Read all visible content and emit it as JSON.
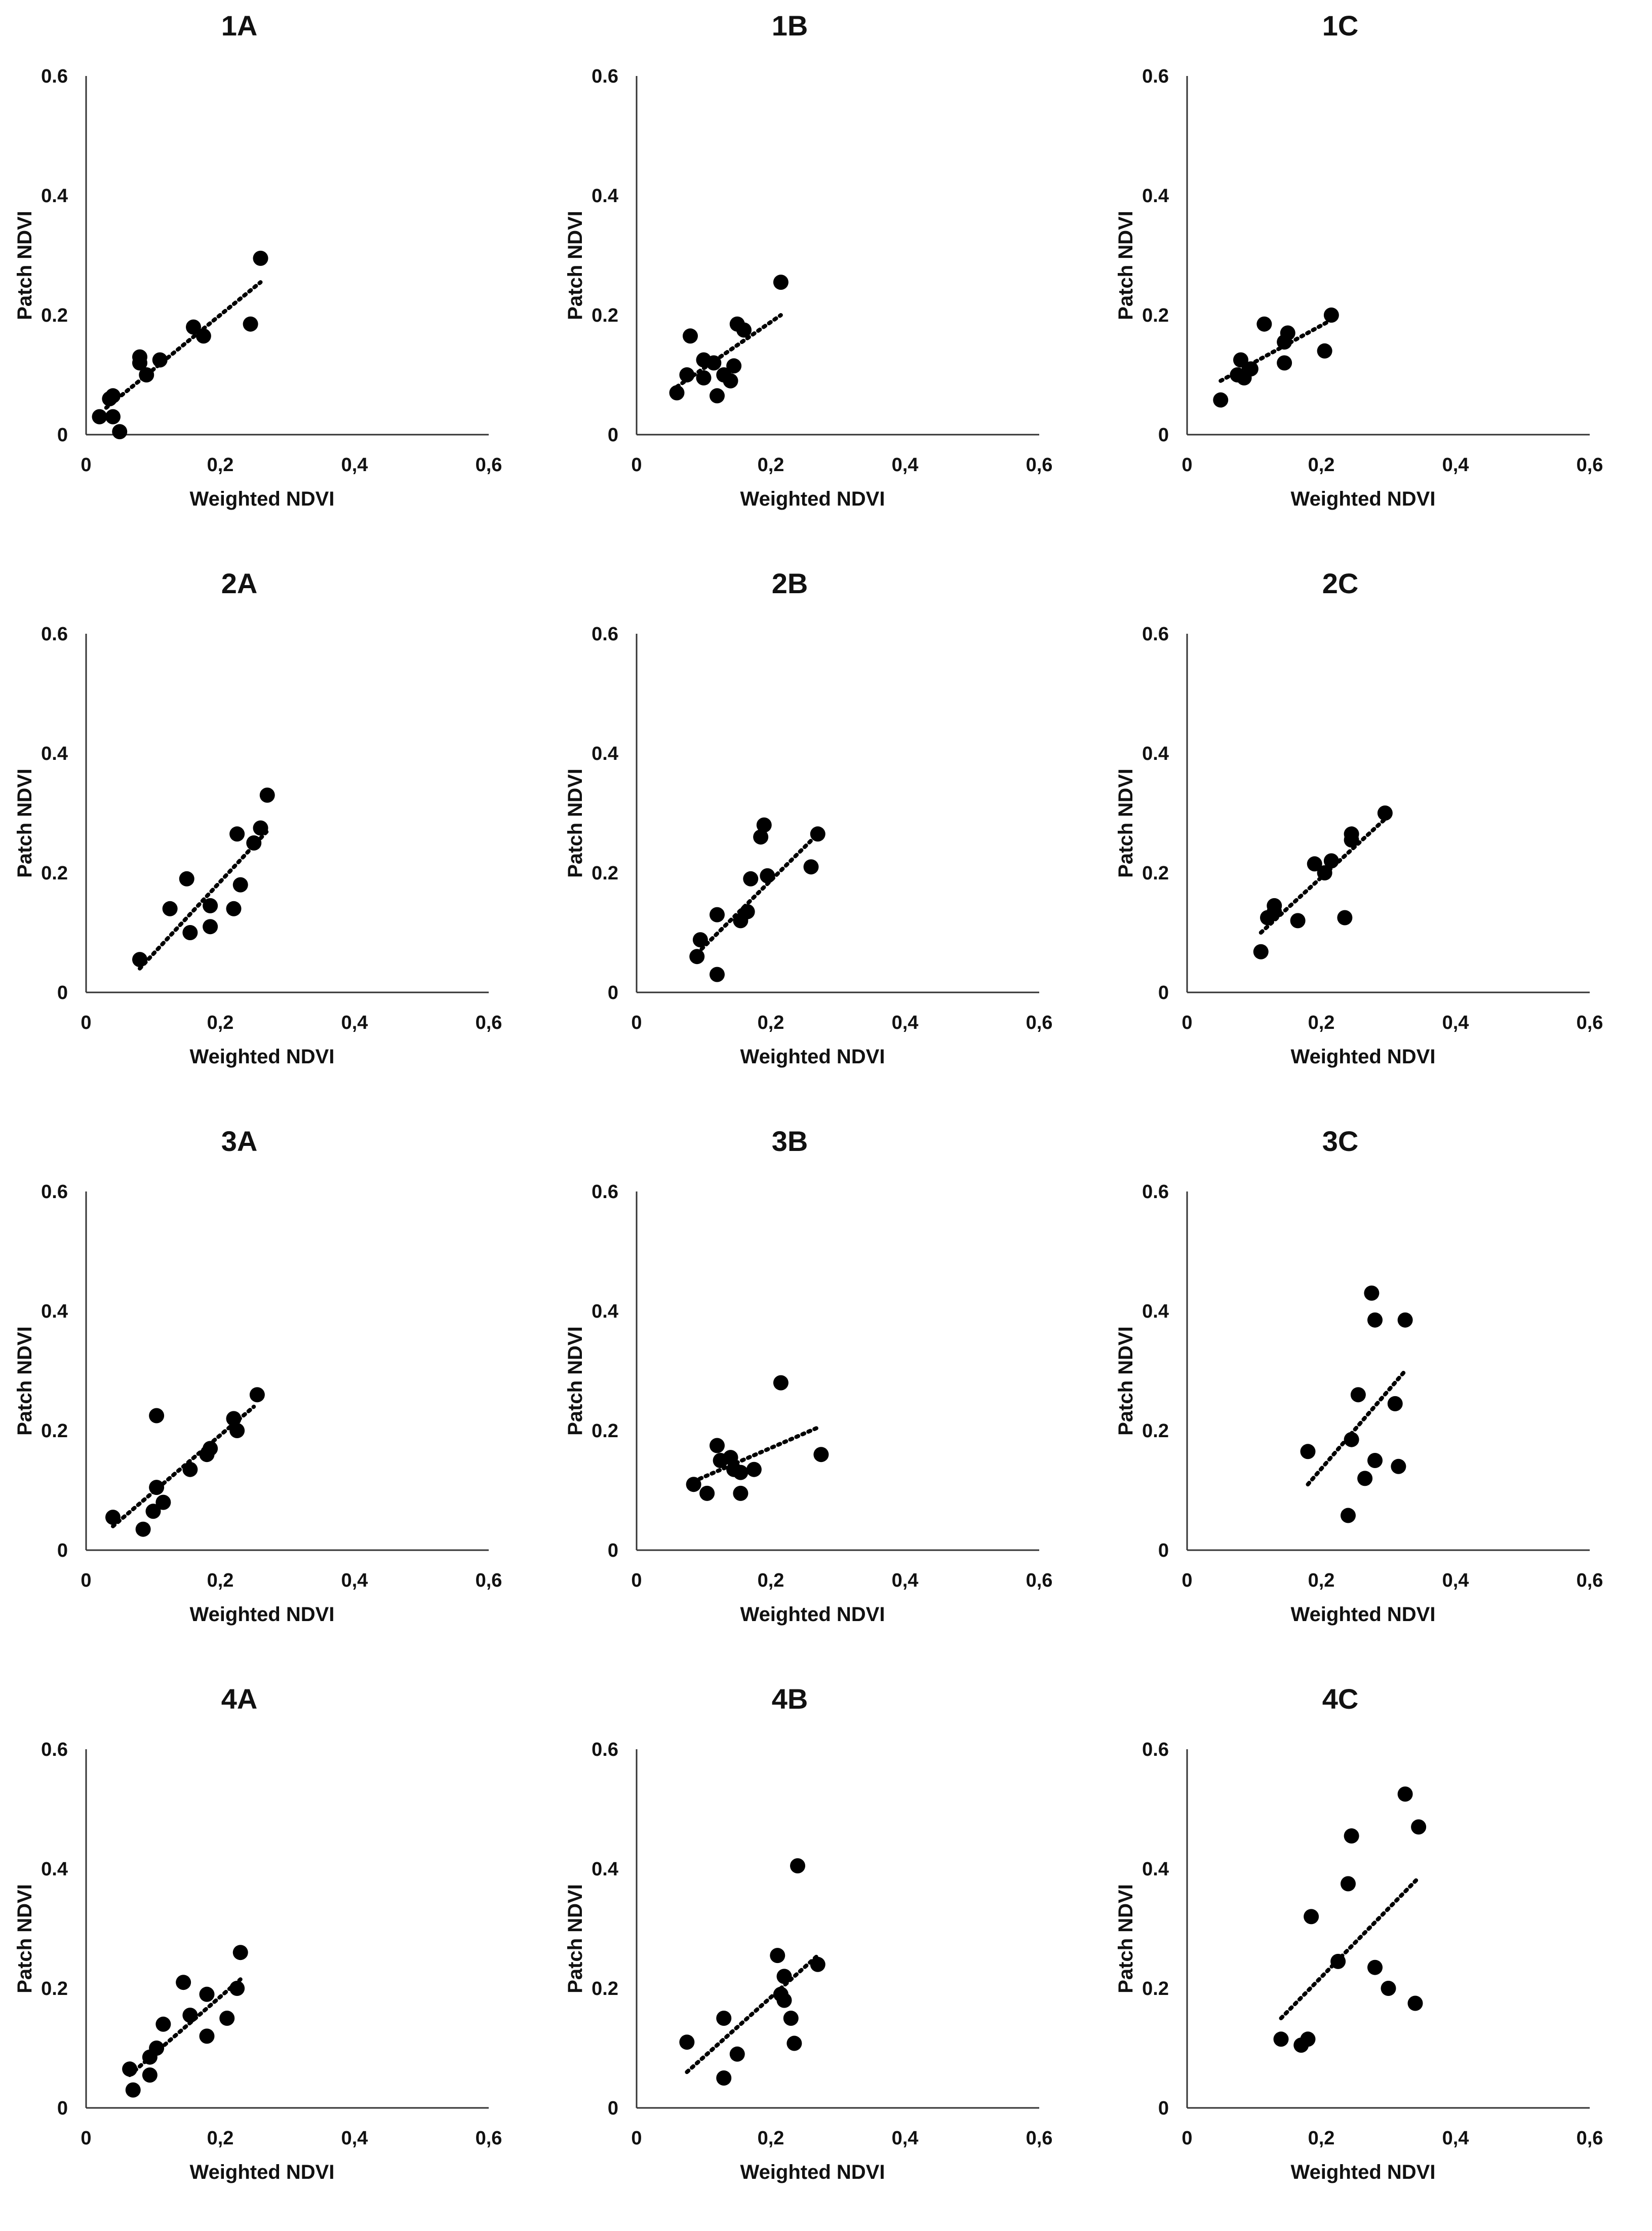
{
  "chart_data": [
    {
      "id": "1A",
      "type": "scatter",
      "title": "1A",
      "xlabel": "Weighted NDVI",
      "ylabel": "Patch NDVI",
      "xlim": [
        0,
        0.6
      ],
      "ylim": [
        0,
        0.6
      ],
      "xticks": [
        "0",
        "0,2",
        "0,4",
        "0,6"
      ],
      "yticks": [
        "0",
        "0.2",
        "0.4",
        "0.6"
      ],
      "points": [
        [
          0.02,
          0.03
        ],
        [
          0.035,
          0.06
        ],
        [
          0.04,
          0.065
        ],
        [
          0.04,
          0.03
        ],
        [
          0.05,
          0.005
        ],
        [
          0.08,
          0.13
        ],
        [
          0.08,
          0.12
        ],
        [
          0.09,
          0.1
        ],
        [
          0.11,
          0.125
        ],
        [
          0.16,
          0.18
        ],
        [
          0.175,
          0.165
        ],
        [
          0.245,
          0.185
        ],
        [
          0.26,
          0.295
        ]
      ],
      "trendline": [
        [
          0.03,
          0.045
        ],
        [
          0.26,
          0.255
        ]
      ]
    },
    {
      "id": "1B",
      "type": "scatter",
      "title": "1B",
      "xlabel": "Weighted NDVI",
      "ylabel": "Patch NDVI",
      "xlim": [
        0,
        0.6
      ],
      "ylim": [
        0,
        0.6
      ],
      "xticks": [
        "0",
        "0,2",
        "0,4",
        "0,6"
      ],
      "yticks": [
        "0",
        "0.2",
        "0.4",
        "0.6"
      ],
      "points": [
        [
          0.06,
          0.07
        ],
        [
          0.075,
          0.1
        ],
        [
          0.08,
          0.165
        ],
        [
          0.1,
          0.095
        ],
        [
          0.1,
          0.125
        ],
        [
          0.115,
          0.12
        ],
        [
          0.12,
          0.065
        ],
        [
          0.13,
          0.1
        ],
        [
          0.14,
          0.09
        ],
        [
          0.145,
          0.115
        ],
        [
          0.15,
          0.185
        ],
        [
          0.16,
          0.175
        ],
        [
          0.215,
          0.255
        ]
      ],
      "trendline": [
        [
          0.06,
          0.08
        ],
        [
          0.215,
          0.2
        ]
      ]
    },
    {
      "id": "1C",
      "type": "scatter",
      "title": "1C",
      "xlabel": "Weighted NDVI",
      "ylabel": "Patch NDVI",
      "xlim": [
        0,
        0.6
      ],
      "ylim": [
        0,
        0.6
      ],
      "xticks": [
        "0",
        "0,2",
        "0,4",
        "0,6"
      ],
      "yticks": [
        "0",
        "0.2",
        "0.4",
        "0.6"
      ],
      "points": [
        [
          0.05,
          0.058
        ],
        [
          0.075,
          0.1
        ],
        [
          0.08,
          0.125
        ],
        [
          0.085,
          0.095
        ],
        [
          0.095,
          0.11
        ],
        [
          0.115,
          0.185
        ],
        [
          0.145,
          0.155
        ],
        [
          0.145,
          0.12
        ],
        [
          0.15,
          0.17
        ],
        [
          0.205,
          0.14
        ],
        [
          0.215,
          0.2
        ]
      ],
      "trendline": [
        [
          0.05,
          0.09
        ],
        [
          0.22,
          0.195
        ]
      ]
    },
    {
      "id": "2A",
      "type": "scatter",
      "title": "2A",
      "xlabel": "Weighted NDVI",
      "ylabel": "Patch NDVI",
      "xlim": [
        0,
        0.6
      ],
      "ylim": [
        0,
        0.6
      ],
      "xticks": [
        "0",
        "0,2",
        "0,4",
        "0,6"
      ],
      "yticks": [
        "0",
        "0.2",
        "0.4",
        "0.6"
      ],
      "points": [
        [
          0.08,
          0.055
        ],
        [
          0.125,
          0.14
        ],
        [
          0.15,
          0.19
        ],
        [
          0.155,
          0.1
        ],
        [
          0.185,
          0.145
        ],
        [
          0.185,
          0.11
        ],
        [
          0.22,
          0.14
        ],
        [
          0.225,
          0.265
        ],
        [
          0.23,
          0.18
        ],
        [
          0.25,
          0.25
        ],
        [
          0.26,
          0.275
        ],
        [
          0.27,
          0.33
        ]
      ],
      "trendline": [
        [
          0.08,
          0.04
        ],
        [
          0.27,
          0.27
        ]
      ]
    },
    {
      "id": "2B",
      "type": "scatter",
      "title": "2B",
      "xlabel": "Weighted NDVI",
      "ylabel": "Patch NDVI",
      "xlim": [
        0,
        0.6
      ],
      "ylim": [
        0,
        0.6
      ],
      "xticks": [
        "0",
        "0,2",
        "0,4",
        "0,6"
      ],
      "yticks": [
        "0",
        "0.2",
        "0.4",
        "0.6"
      ],
      "points": [
        [
          0.09,
          0.06
        ],
        [
          0.095,
          0.088
        ],
        [
          0.12,
          0.13
        ],
        [
          0.12,
          0.03
        ],
        [
          0.155,
          0.12
        ],
        [
          0.165,
          0.135
        ],
        [
          0.17,
          0.19
        ],
        [
          0.185,
          0.26
        ],
        [
          0.19,
          0.28
        ],
        [
          0.195,
          0.195
        ],
        [
          0.26,
          0.21
        ],
        [
          0.27,
          0.265
        ]
      ],
      "trendline": [
        [
          0.09,
          0.065
        ],
        [
          0.27,
          0.265
        ]
      ]
    },
    {
      "id": "2C",
      "type": "scatter",
      "title": "2C",
      "xlabel": "Weighted NDVI",
      "ylabel": "Patch NDVI",
      "xlim": [
        0,
        0.6
      ],
      "ylim": [
        0,
        0.6
      ],
      "xticks": [
        "0",
        "0,2",
        "0,4",
        "0,6"
      ],
      "yticks": [
        "0",
        "0.2",
        "0.4",
        "0.6"
      ],
      "points": [
        [
          0.11,
          0.068
        ],
        [
          0.12,
          0.125
        ],
        [
          0.13,
          0.145
        ],
        [
          0.13,
          0.135
        ],
        [
          0.165,
          0.12
        ],
        [
          0.19,
          0.215
        ],
        [
          0.205,
          0.2
        ],
        [
          0.215,
          0.22
        ],
        [
          0.235,
          0.125
        ],
        [
          0.245,
          0.265
        ],
        [
          0.245,
          0.255
        ],
        [
          0.295,
          0.3
        ]
      ],
      "trendline": [
        [
          0.11,
          0.1
        ],
        [
          0.295,
          0.29
        ]
      ]
    },
    {
      "id": "3A",
      "type": "scatter",
      "title": "3A",
      "xlabel": "Weighted NDVI",
      "ylabel": "Patch NDVI",
      "xlim": [
        0,
        0.6
      ],
      "ylim": [
        0,
        0.6
      ],
      "xticks": [
        "0",
        "0,2",
        "0,4",
        "0,6"
      ],
      "yticks": [
        "0",
        "0.2",
        "0.4",
        "0.6"
      ],
      "points": [
        [
          0.04,
          0.055
        ],
        [
          0.085,
          0.035
        ],
        [
          0.1,
          0.065
        ],
        [
          0.105,
          0.105
        ],
        [
          0.105,
          0.225
        ],
        [
          0.115,
          0.08
        ],
        [
          0.155,
          0.135
        ],
        [
          0.18,
          0.16
        ],
        [
          0.185,
          0.17
        ],
        [
          0.22,
          0.22
        ],
        [
          0.225,
          0.2
        ],
        [
          0.255,
          0.26
        ]
      ],
      "trendline": [
        [
          0.04,
          0.04
        ],
        [
          0.25,
          0.24
        ]
      ]
    },
    {
      "id": "3B",
      "type": "scatter",
      "title": "3B",
      "xlabel": "Weighted NDVI",
      "ylabel": "Patch NDVI",
      "xlim": [
        0,
        0.6
      ],
      "ylim": [
        0,
        0.6
      ],
      "xticks": [
        "0",
        "0,2",
        "0,4",
        "0,6"
      ],
      "yticks": [
        "0",
        "0.2",
        "0.4",
        "0.6"
      ],
      "points": [
        [
          0.085,
          0.11
        ],
        [
          0.105,
          0.095
        ],
        [
          0.12,
          0.175
        ],
        [
          0.125,
          0.15
        ],
        [
          0.14,
          0.155
        ],
        [
          0.145,
          0.135
        ],
        [
          0.155,
          0.095
        ],
        [
          0.155,
          0.13
        ],
        [
          0.175,
          0.135
        ],
        [
          0.215,
          0.28
        ],
        [
          0.275,
          0.16
        ]
      ],
      "trendline": [
        [
          0.085,
          0.115
        ],
        [
          0.27,
          0.205
        ]
      ]
    },
    {
      "id": "3C",
      "type": "scatter",
      "title": "3C",
      "xlabel": "Weighted NDVI",
      "ylabel": "Patch NDVI",
      "xlim": [
        0,
        0.6
      ],
      "ylim": [
        0,
        0.6
      ],
      "xticks": [
        "0",
        "0,2",
        "0,4",
        "0,6"
      ],
      "yticks": [
        "0",
        "0.2",
        "0.4",
        "0.6"
      ],
      "points": [
        [
          0.18,
          0.165
        ],
        [
          0.24,
          0.058
        ],
        [
          0.245,
          0.185
        ],
        [
          0.255,
          0.26
        ],
        [
          0.265,
          0.12
        ],
        [
          0.275,
          0.43
        ],
        [
          0.28,
          0.385
        ],
        [
          0.28,
          0.15
        ],
        [
          0.31,
          0.245
        ],
        [
          0.315,
          0.14
        ],
        [
          0.325,
          0.385
        ]
      ],
      "trendline": [
        [
          0.18,
          0.11
        ],
        [
          0.325,
          0.3
        ]
      ]
    },
    {
      "id": "4A",
      "type": "scatter",
      "title": "4A",
      "xlabel": "Weighted NDVI",
      "ylabel": "Patch NDVI",
      "xlim": [
        0,
        0.6
      ],
      "ylim": [
        0,
        0.6
      ],
      "xticks": [
        "0",
        "0,2",
        "0,4",
        "0,6"
      ],
      "yticks": [
        "0",
        "0.2",
        "0.4",
        "0.6"
      ],
      "points": [
        [
          0.065,
          0.065
        ],
        [
          0.07,
          0.03
        ],
        [
          0.095,
          0.085
        ],
        [
          0.095,
          0.055
        ],
        [
          0.105,
          0.1
        ],
        [
          0.115,
          0.14
        ],
        [
          0.145,
          0.21
        ],
        [
          0.155,
          0.155
        ],
        [
          0.18,
          0.12
        ],
        [
          0.18,
          0.19
        ],
        [
          0.21,
          0.15
        ],
        [
          0.225,
          0.2
        ],
        [
          0.23,
          0.26
        ]
      ],
      "trendline": [
        [
          0.065,
          0.055
        ],
        [
          0.23,
          0.215
        ]
      ]
    },
    {
      "id": "4B",
      "type": "scatter",
      "title": "4B",
      "xlabel": "Weighted NDVI",
      "ylabel": "Patch NDVI",
      "xlim": [
        0,
        0.6
      ],
      "ylim": [
        0,
        0.6
      ],
      "xticks": [
        "0",
        "0,2",
        "0,4",
        "0,6"
      ],
      "yticks": [
        "0",
        "0.2",
        "0.4",
        "0.6"
      ],
      "points": [
        [
          0.075,
          0.11
        ],
        [
          0.13,
          0.05
        ],
        [
          0.13,
          0.15
        ],
        [
          0.15,
          0.09
        ],
        [
          0.21,
          0.255
        ],
        [
          0.215,
          0.19
        ],
        [
          0.22,
          0.22
        ],
        [
          0.22,
          0.18
        ],
        [
          0.23,
          0.15
        ],
        [
          0.235,
          0.108
        ],
        [
          0.24,
          0.405
        ],
        [
          0.27,
          0.24
        ]
      ],
      "trendline": [
        [
          0.075,
          0.06
        ],
        [
          0.27,
          0.255
        ]
      ]
    },
    {
      "id": "4C",
      "type": "scatter",
      "title": "4C",
      "xlabel": "Weighted NDVI",
      "ylabel": "Patch NDVI",
      "xlim": [
        0,
        0.6
      ],
      "ylim": [
        0,
        0.6
      ],
      "xticks": [
        "0",
        "0,2",
        "0,4",
        "0,6"
      ],
      "yticks": [
        "0",
        "0.2",
        "0.4",
        "0.6"
      ],
      "points": [
        [
          0.14,
          0.115
        ],
        [
          0.17,
          0.105
        ],
        [
          0.18,
          0.115
        ],
        [
          0.185,
          0.32
        ],
        [
          0.225,
          0.245
        ],
        [
          0.24,
          0.375
        ],
        [
          0.245,
          0.455
        ],
        [
          0.28,
          0.235
        ],
        [
          0.3,
          0.2
        ],
        [
          0.325,
          0.525
        ],
        [
          0.34,
          0.175
        ],
        [
          0.345,
          0.47
        ]
      ],
      "trendline": [
        [
          0.14,
          0.15
        ],
        [
          0.345,
          0.385
        ]
      ]
    }
  ]
}
